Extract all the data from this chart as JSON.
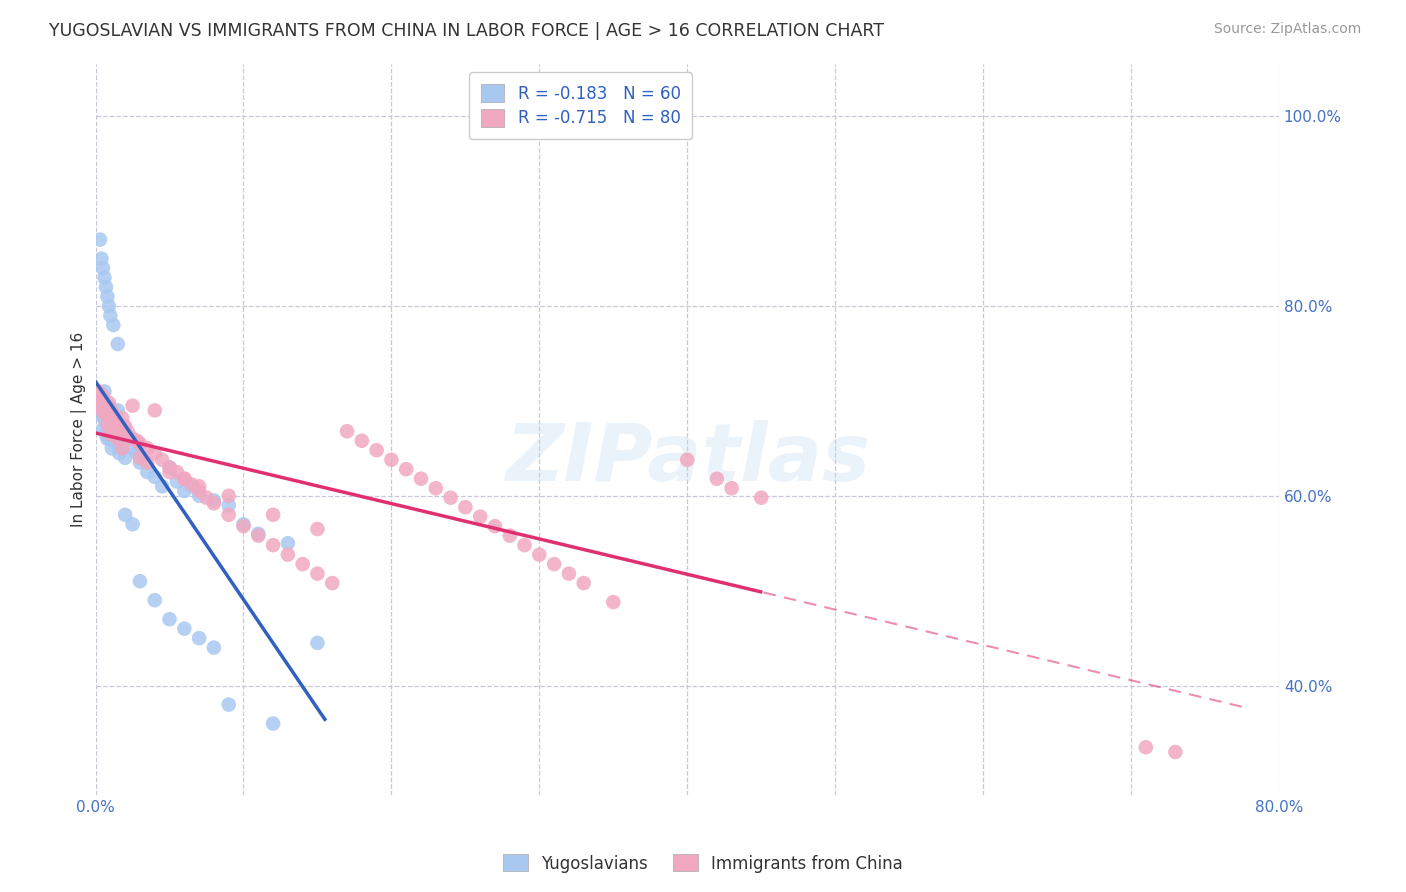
{
  "title": "YUGOSLAVIAN VS IMMIGRANTS FROM CHINA IN LABOR FORCE | AGE > 16 CORRELATION CHART",
  "source_text": "Source: ZipAtlas.com",
  "ylabel": "In Labor Force | Age > 16",
  "x_min": 0.0,
  "x_max": 0.8,
  "y_min": 0.285,
  "y_max": 1.055,
  "y_ticks": [
    0.4,
    0.6,
    0.8,
    1.0
  ],
  "y_tick_labels": [
    "40.0%",
    "60.0%",
    "80.0%",
    "100.0%"
  ],
  "watermark": "ZIPatlas",
  "series1_name": "Yugoslavians",
  "series1_color": "#a8c8f0",
  "series1_R": -0.183,
  "series1_N": 60,
  "series2_name": "Immigrants from China",
  "series2_color": "#f0a8c0",
  "series2_R": -0.715,
  "series2_N": 80,
  "trend1_color": "#3060c0",
  "trend2_color": "#e03070",
  "background_color": "#ffffff",
  "grid_color": "#c8c8d8",
  "blue_x": [
    0.002,
    0.003,
    0.004,
    0.005,
    0.005,
    0.006,
    0.006,
    0.007,
    0.008,
    0.008,
    0.009,
    0.01,
    0.01,
    0.011,
    0.012,
    0.013,
    0.014,
    0.015,
    0.016,
    0.017,
    0.018,
    0.02,
    0.022,
    0.025,
    0.028,
    0.03,
    0.035,
    0.04,
    0.045,
    0.05,
    0.055,
    0.06,
    0.065,
    0.07,
    0.08,
    0.09,
    0.1,
    0.11,
    0.13,
    0.15,
    0.003,
    0.004,
    0.005,
    0.006,
    0.007,
    0.008,
    0.009,
    0.01,
    0.012,
    0.015,
    0.02,
    0.025,
    0.03,
    0.04,
    0.05,
    0.06,
    0.07,
    0.08,
    0.09,
    0.12
  ],
  "blue_y": [
    0.69,
    0.695,
    0.685,
    0.67,
    0.7,
    0.68,
    0.71,
    0.665,
    0.675,
    0.66,
    0.695,
    0.66,
    0.68,
    0.65,
    0.665,
    0.67,
    0.655,
    0.69,
    0.645,
    0.66,
    0.65,
    0.64,
    0.66,
    0.65,
    0.645,
    0.635,
    0.625,
    0.62,
    0.61,
    0.63,
    0.615,
    0.605,
    0.61,
    0.6,
    0.595,
    0.59,
    0.57,
    0.56,
    0.55,
    0.445,
    0.87,
    0.85,
    0.84,
    0.83,
    0.82,
    0.81,
    0.8,
    0.79,
    0.78,
    0.76,
    0.58,
    0.57,
    0.51,
    0.49,
    0.47,
    0.46,
    0.45,
    0.44,
    0.38,
    0.36
  ],
  "pink_x": [
    0.002,
    0.003,
    0.004,
    0.005,
    0.006,
    0.007,
    0.008,
    0.009,
    0.01,
    0.011,
    0.012,
    0.013,
    0.014,
    0.015,
    0.016,
    0.017,
    0.018,
    0.02,
    0.022,
    0.025,
    0.028,
    0.03,
    0.035,
    0.04,
    0.045,
    0.05,
    0.055,
    0.06,
    0.065,
    0.07,
    0.075,
    0.08,
    0.09,
    0.1,
    0.11,
    0.12,
    0.13,
    0.14,
    0.15,
    0.16,
    0.17,
    0.18,
    0.19,
    0.2,
    0.21,
    0.22,
    0.23,
    0.24,
    0.25,
    0.26,
    0.27,
    0.28,
    0.29,
    0.3,
    0.31,
    0.32,
    0.33,
    0.35,
    0.4,
    0.42,
    0.43,
    0.45,
    0.005,
    0.008,
    0.01,
    0.012,
    0.015,
    0.018,
    0.025,
    0.03,
    0.035,
    0.04,
    0.05,
    0.06,
    0.07,
    0.09,
    0.12,
    0.15,
    0.71,
    0.73
  ],
  "pink_y": [
    0.71,
    0.7,
    0.695,
    0.705,
    0.69,
    0.695,
    0.685,
    0.698,
    0.692,
    0.688,
    0.685,
    0.68,
    0.675,
    0.678,
    0.672,
    0.668,
    0.682,
    0.673,
    0.667,
    0.66,
    0.658,
    0.655,
    0.65,
    0.645,
    0.638,
    0.63,
    0.625,
    0.618,
    0.612,
    0.605,
    0.598,
    0.592,
    0.58,
    0.568,
    0.558,
    0.548,
    0.538,
    0.528,
    0.518,
    0.508,
    0.668,
    0.658,
    0.648,
    0.638,
    0.628,
    0.618,
    0.608,
    0.598,
    0.588,
    0.578,
    0.568,
    0.558,
    0.548,
    0.538,
    0.528,
    0.518,
    0.508,
    0.488,
    0.638,
    0.618,
    0.608,
    0.598,
    0.688,
    0.675,
    0.665,
    0.67,
    0.66,
    0.65,
    0.695,
    0.64,
    0.635,
    0.69,
    0.625,
    0.618,
    0.61,
    0.6,
    0.58,
    0.565,
    0.335,
    0.33
  ]
}
